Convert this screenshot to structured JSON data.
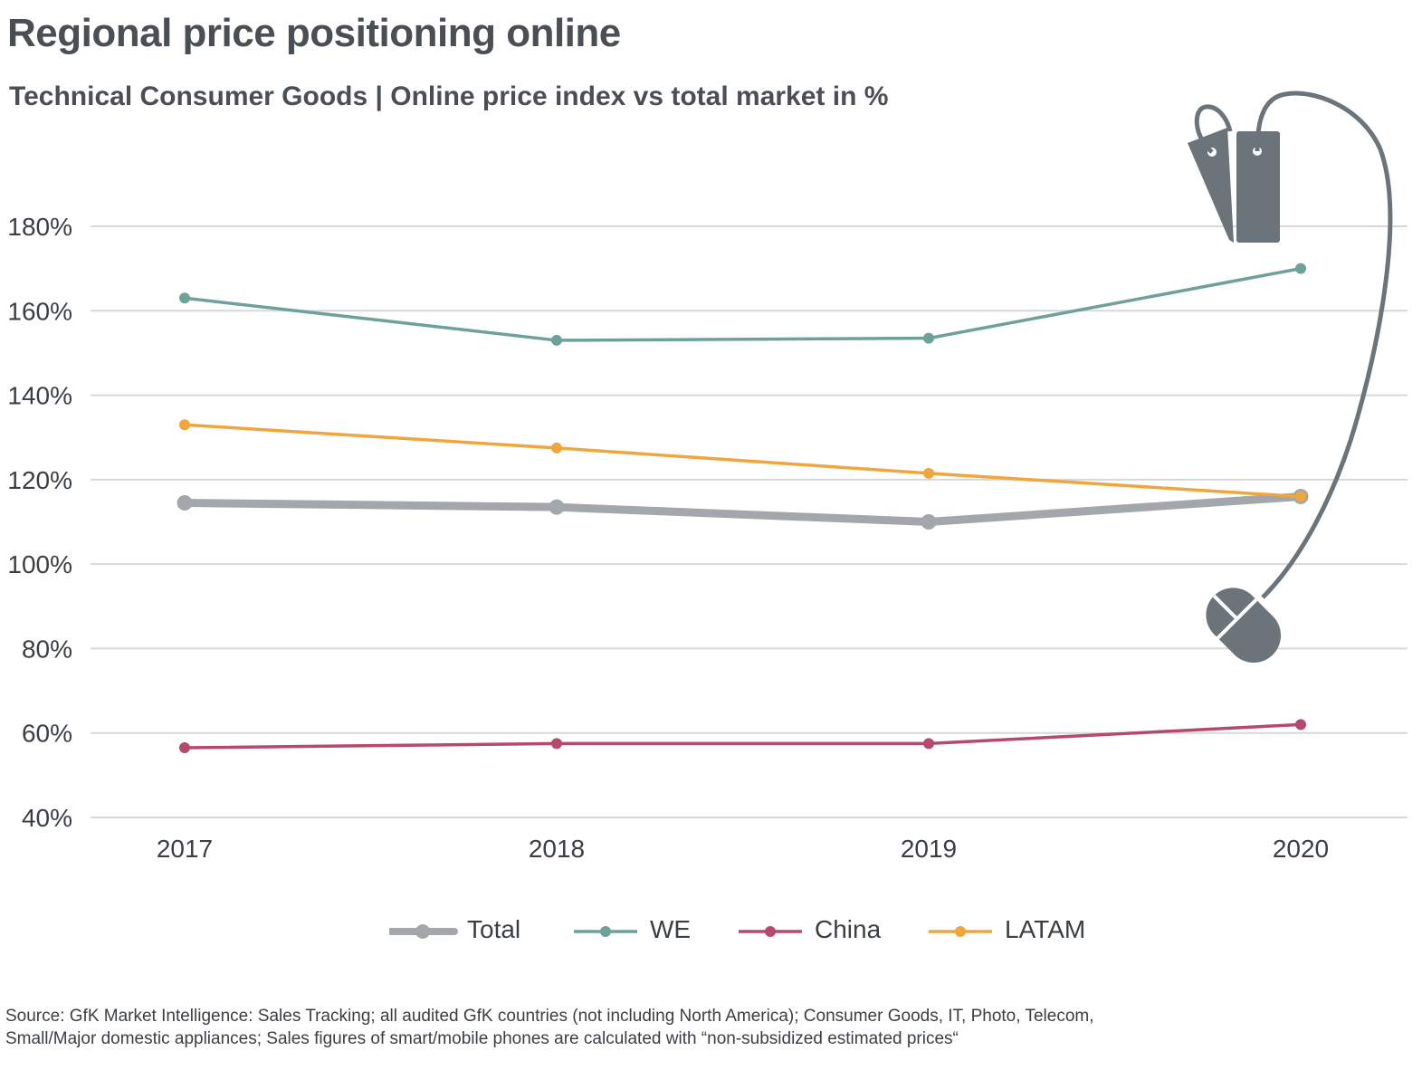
{
  "header": {
    "title": "Regional price positioning online",
    "subtitle": "Technical Consumer Goods | Online price index vs total market in %"
  },
  "chart_data": {
    "type": "line",
    "title": "Regional price positioning online",
    "subtitle": "Technical Consumer Goods | Online price index vs total market in %",
    "xlabel": "",
    "ylabel": "",
    "categories": [
      "2017",
      "2018",
      "2019",
      "2020"
    ],
    "yticks": [
      "40%",
      "60%",
      "80%",
      "100%",
      "120%",
      "140%",
      "160%",
      "180%"
    ],
    "ytick_values": [
      40,
      60,
      80,
      100,
      120,
      140,
      160,
      180
    ],
    "ylim": [
      40,
      180
    ],
    "grid": "horizontal",
    "legend_position": "bottom",
    "series": [
      {
        "name": "Total",
        "color": "#a3a7ab",
        "emphasis": "thick",
        "values": [
          114.5,
          113.5,
          110,
          116
        ]
      },
      {
        "name": "WE",
        "color": "#6fa19b",
        "values": [
          163,
          153,
          153.5,
          170
        ]
      },
      {
        "name": "China",
        "color": "#b54a6c",
        "values": [
          56.5,
          57.5,
          57.5,
          62
        ]
      },
      {
        "name": "LATAM",
        "color": "#f0a63e",
        "values": [
          133,
          127.5,
          121.5,
          116
        ]
      }
    ],
    "decoration": {
      "icons": [
        "price-tag-icon",
        "computer-mouse-icon"
      ],
      "color": "#6b747b"
    }
  },
  "legend": {
    "items": [
      {
        "label": "Total"
      },
      {
        "label": "WE"
      },
      {
        "label": "China"
      },
      {
        "label": "LATAM"
      }
    ]
  },
  "footer": {
    "source_line1": "Source: GfK Market Intelligence: Sales Tracking; all audited GfK countries (not including North America); Consumer Goods, IT, Photo, Telecom,",
    "source_line2": "Small/Major domestic appliances; Sales figures of smart/mobile phones are calculated with “non-subsidized estimated prices“"
  }
}
